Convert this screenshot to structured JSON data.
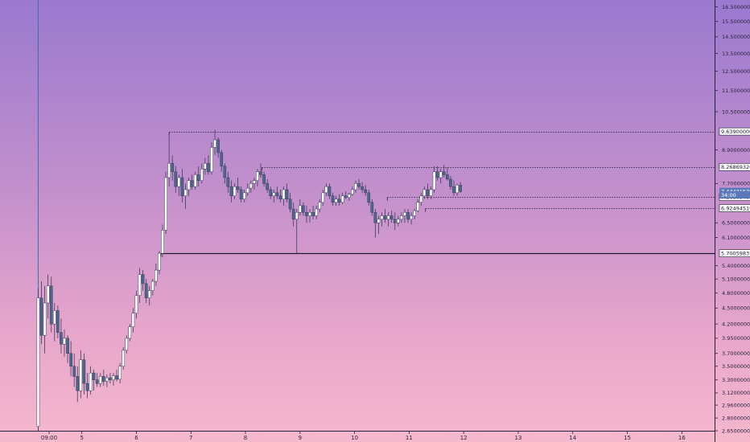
{
  "chart_data": {
    "type": "candlestick",
    "y_axis": {
      "position": "right",
      "scale": "log",
      "range": [
        2.65,
        17.0
      ],
      "ticks": [
        "16.50000000",
        "15.50000000",
        "14.50000000",
        "13.50000000",
        "12.50000000",
        "11.50000000",
        "10.50000000",
        "8.90000000",
        "7.70000000",
        "6.50000000",
        "6.10000000",
        "5.40000000",
        "5.10000000",
        "4.80000000",
        "4.50000000",
        "4.20000000",
        "3.95000000",
        "3.70000000",
        "3.50000000",
        "3.30000000",
        "3.12000000",
        "2.96000000",
        "2.80000000",
        "2.65000000"
      ]
    },
    "x_axis": {
      "ticks": [
        "09:00",
        "5",
        "6",
        "7",
        "8",
        "9",
        "10",
        "11",
        "12",
        "13",
        "14",
        "15",
        "16"
      ],
      "tick_units": [
        4.4,
        5,
        6,
        7,
        8,
        9,
        10,
        11,
        12,
        13,
        14,
        15,
        16
      ],
      "range": [
        3.5,
        16.6
      ]
    },
    "levels": [
      {
        "label": "9.63900000",
        "value": 9.639,
        "style": "dotted",
        "start": 6.6
      },
      {
        "label": "8.26869320",
        "value": 8.2687,
        "style": "dotted",
        "start": 8.3
      },
      {
        "label": "7.26809481",
        "value": 7.268,
        "style": "dotted",
        "start": 10.6
      },
      {
        "label": "6.92494519",
        "value": 6.925,
        "style": "dotted",
        "start": 11.3
      },
      {
        "label": "5.70059831",
        "value": 5.7006,
        "style": "solid",
        "start": 6.45
      }
    ],
    "price_tags": [
      {
        "label": "7.44421570",
        "value": 7.444,
        "color": "#5b79b8"
      },
      {
        "label": "34:00",
        "value": 7.33,
        "color": "#5b79b8"
      }
    ],
    "cursor_line": {
      "x": 4.2
    },
    "candles": [
      [
        4.2,
        2.7,
        4.9,
        2.65,
        4.7
      ],
      [
        4.26,
        4.7,
        5.05,
        3.85,
        4.0
      ],
      [
        4.32,
        4.0,
        4.95,
        3.7,
        4.6
      ],
      [
        4.38,
        4.6,
        5.2,
        4.3,
        4.95
      ],
      [
        4.44,
        4.95,
        5.15,
        4.05,
        4.2
      ],
      [
        4.5,
        4.2,
        4.6,
        3.9,
        4.45
      ],
      [
        4.56,
        4.45,
        4.55,
        3.95,
        4.05
      ],
      [
        4.62,
        4.05,
        4.3,
        3.7,
        3.85
      ],
      [
        4.68,
        3.85,
        4.1,
        3.65,
        3.95
      ],
      [
        4.74,
        3.95,
        4.0,
        3.55,
        3.7
      ],
      [
        4.8,
        3.7,
        3.9,
        3.35,
        3.5
      ],
      [
        4.86,
        3.5,
        3.7,
        3.2,
        3.35
      ],
      [
        4.92,
        3.35,
        3.5,
        3.0,
        3.15
      ],
      [
        4.98,
        3.15,
        3.75,
        3.05,
        3.6
      ],
      [
        5.04,
        3.6,
        3.7,
        3.1,
        3.25
      ],
      [
        5.1,
        3.25,
        3.4,
        3.05,
        3.15
      ],
      [
        5.16,
        3.15,
        3.5,
        3.1,
        3.4
      ],
      [
        5.22,
        3.4,
        3.45,
        3.15,
        3.3
      ],
      [
        5.28,
        3.3,
        3.4,
        3.2,
        3.25
      ],
      [
        5.34,
        3.25,
        3.4,
        3.2,
        3.35
      ],
      [
        5.4,
        3.35,
        3.45,
        3.22,
        3.28
      ],
      [
        5.46,
        3.28,
        3.38,
        3.2,
        3.33
      ],
      [
        5.52,
        3.33,
        3.4,
        3.25,
        3.3
      ],
      [
        5.58,
        3.3,
        3.4,
        3.22,
        3.36
      ],
      [
        5.64,
        3.36,
        3.45,
        3.28,
        3.31
      ],
      [
        5.7,
        3.31,
        3.55,
        3.25,
        3.5
      ],
      [
        5.76,
        3.5,
        3.8,
        3.45,
        3.75
      ],
      [
        5.82,
        3.75,
        4.0,
        3.7,
        3.95
      ],
      [
        5.88,
        3.95,
        4.2,
        3.9,
        4.15
      ],
      [
        5.94,
        4.15,
        4.5,
        4.05,
        4.4
      ],
      [
        6.0,
        4.4,
        4.85,
        4.3,
        4.75
      ],
      [
        6.06,
        4.75,
        5.35,
        4.6,
        5.2
      ],
      [
        6.12,
        5.2,
        5.3,
        4.85,
        5.0
      ],
      [
        6.18,
        5.0,
        5.1,
        4.6,
        4.7
      ],
      [
        6.24,
        4.7,
        4.95,
        4.55,
        4.85
      ],
      [
        6.3,
        4.85,
        5.1,
        4.75,
        5.05
      ],
      [
        6.36,
        5.05,
        5.45,
        4.95,
        5.3
      ],
      [
        6.42,
        5.3,
        5.75,
        5.2,
        5.7
      ],
      [
        6.48,
        5.7,
        6.45,
        5.6,
        6.3
      ],
      [
        6.54,
        6.3,
        8.1,
        6.2,
        7.9
      ],
      [
        6.6,
        7.9,
        9.5,
        7.6,
        8.4
      ],
      [
        6.66,
        8.4,
        8.7,
        7.8,
        8.1
      ],
      [
        6.72,
        8.1,
        8.3,
        7.4,
        7.6
      ],
      [
        6.78,
        7.6,
        8.0,
        7.3,
        7.9
      ],
      [
        6.84,
        7.9,
        8.2,
        7.1,
        7.3
      ],
      [
        6.9,
        7.3,
        7.7,
        6.9,
        7.5
      ],
      [
        6.96,
        7.5,
        7.9,
        7.3,
        7.8
      ],
      [
        7.02,
        7.8,
        8.0,
        7.5,
        7.6
      ],
      [
        7.08,
        7.6,
        8.1,
        7.5,
        8.0
      ],
      [
        7.14,
        8.0,
        8.3,
        7.6,
        7.8
      ],
      [
        7.2,
        7.8,
        8.4,
        7.7,
        8.2
      ],
      [
        7.26,
        8.2,
        8.6,
        8.0,
        8.4
      ],
      [
        7.32,
        8.4,
        8.7,
        8.0,
        8.1
      ],
      [
        7.38,
        8.1,
        9.2,
        8.0,
        9.0
      ],
      [
        7.44,
        9.0,
        9.7,
        8.7,
        9.3
      ],
      [
        7.5,
        9.3,
        9.4,
        8.6,
        8.8
      ],
      [
        7.56,
        8.8,
        8.9,
        8.1,
        8.3
      ],
      [
        7.62,
        8.3,
        8.4,
        7.7,
        7.9
      ],
      [
        7.68,
        7.9,
        8.1,
        7.4,
        7.6
      ],
      [
        7.74,
        7.6,
        7.8,
        7.1,
        7.3
      ],
      [
        7.8,
        7.3,
        7.7,
        7.2,
        7.6
      ],
      [
        7.86,
        7.6,
        7.9,
        7.4,
        7.5
      ],
      [
        7.92,
        7.5,
        7.6,
        7.1,
        7.2
      ],
      [
        7.98,
        7.2,
        7.5,
        7.1,
        7.4
      ],
      [
        8.04,
        7.4,
        7.7,
        7.3,
        7.55
      ],
      [
        8.1,
        7.55,
        7.8,
        7.4,
        7.7
      ],
      [
        8.16,
        7.7,
        7.9,
        7.5,
        7.8
      ],
      [
        8.22,
        7.8,
        8.2,
        7.6,
        8.1
      ],
      [
        8.28,
        8.1,
        8.4,
        7.9,
        8.0
      ],
      [
        8.34,
        8.0,
        8.1,
        7.6,
        7.7
      ],
      [
        8.4,
        7.7,
        7.85,
        7.4,
        7.5
      ],
      [
        8.46,
        7.5,
        7.6,
        7.2,
        7.3
      ],
      [
        8.52,
        7.3,
        7.5,
        7.1,
        7.4
      ],
      [
        8.58,
        7.4,
        7.6,
        7.2,
        7.3
      ],
      [
        8.64,
        7.3,
        7.5,
        7.1,
        7.2
      ],
      [
        8.7,
        7.2,
        7.6,
        7.0,
        7.5
      ],
      [
        8.76,
        7.5,
        7.7,
        7.1,
        7.2
      ],
      [
        8.82,
        7.2,
        7.4,
        6.8,
        6.9
      ],
      [
        8.88,
        6.9,
        7.1,
        6.4,
        6.6
      ],
      [
        8.94,
        6.6,
        6.9,
        5.7,
        6.8
      ],
      [
        9.0,
        6.8,
        7.2,
        6.7,
        7.0
      ],
      [
        9.06,
        7.0,
        7.1,
        6.7,
        6.8
      ],
      [
        9.12,
        6.8,
        7.0,
        6.5,
        6.7
      ],
      [
        9.18,
        6.7,
        6.9,
        6.5,
        6.8
      ],
      [
        9.24,
        6.8,
        7.0,
        6.6,
        6.7
      ],
      [
        9.3,
        6.7,
        7.0,
        6.6,
        6.9
      ],
      [
        9.36,
        6.9,
        7.2,
        6.8,
        7.1
      ],
      [
        9.42,
        7.1,
        7.5,
        7.0,
        7.4
      ],
      [
        9.48,
        7.4,
        7.7,
        7.3,
        7.6
      ],
      [
        9.54,
        7.6,
        7.7,
        7.2,
        7.3
      ],
      [
        9.6,
        7.3,
        7.4,
        7.0,
        7.1
      ],
      [
        9.66,
        7.1,
        7.3,
        7.0,
        7.2
      ],
      [
        9.72,
        7.2,
        7.35,
        7.0,
        7.1
      ],
      [
        9.78,
        7.1,
        7.4,
        7.05,
        7.3
      ],
      [
        9.84,
        7.3,
        7.45,
        7.2,
        7.25
      ],
      [
        9.9,
        7.25,
        7.4,
        7.15,
        7.35
      ],
      [
        9.96,
        7.35,
        7.6,
        7.3,
        7.5
      ],
      [
        10.02,
        7.5,
        7.8,
        7.4,
        7.7
      ],
      [
        10.08,
        7.7,
        7.85,
        7.5,
        7.6
      ],
      [
        10.14,
        7.6,
        7.75,
        7.4,
        7.5
      ],
      [
        10.2,
        7.5,
        7.65,
        7.3,
        7.4
      ],
      [
        10.26,
        7.4,
        7.5,
        7.0,
        7.1
      ],
      [
        10.32,
        7.1,
        7.2,
        6.7,
        6.8
      ],
      [
        10.38,
        6.8,
        6.9,
        6.1,
        6.5
      ],
      [
        10.44,
        6.5,
        6.7,
        6.2,
        6.6
      ],
      [
        10.5,
        6.6,
        6.8,
        6.4,
        6.7
      ],
      [
        10.56,
        6.7,
        6.9,
        6.5,
        6.6
      ],
      [
        10.62,
        6.6,
        6.8,
        6.4,
        6.7
      ],
      [
        10.68,
        6.7,
        6.85,
        6.5,
        6.6
      ],
      [
        10.74,
        6.6,
        6.8,
        6.3,
        6.5
      ],
      [
        10.8,
        6.5,
        6.7,
        6.4,
        6.6
      ],
      [
        10.86,
        6.6,
        6.8,
        6.5,
        6.7
      ],
      [
        10.92,
        6.7,
        6.9,
        6.5,
        6.8
      ],
      [
        10.98,
        6.8,
        6.9,
        6.5,
        6.6
      ],
      [
        11.04,
        6.6,
        6.8,
        6.45,
        6.7
      ],
      [
        11.1,
        6.7,
        6.9,
        6.6,
        6.85
      ],
      [
        11.16,
        6.85,
        7.2,
        6.8,
        7.1
      ],
      [
        11.22,
        7.1,
        7.4,
        7.0,
        7.3
      ],
      [
        11.28,
        7.3,
        7.6,
        7.2,
        7.5
      ],
      [
        11.34,
        7.5,
        7.7,
        7.2,
        7.3
      ],
      [
        11.4,
        7.3,
        7.6,
        7.2,
        7.5
      ],
      [
        11.46,
        7.5,
        8.3,
        7.4,
        8.1
      ],
      [
        11.52,
        8.1,
        8.3,
        7.8,
        7.9
      ],
      [
        11.58,
        7.9,
        8.2,
        7.7,
        8.1
      ],
      [
        11.64,
        8.1,
        8.35,
        7.9,
        8.0
      ],
      [
        11.7,
        8.0,
        8.25,
        7.8,
        7.85
      ],
      [
        11.76,
        7.85,
        7.95,
        7.5,
        7.6
      ],
      [
        11.82,
        7.6,
        7.8,
        7.3,
        7.4
      ],
      [
        11.88,
        7.4,
        7.7,
        7.3,
        7.65
      ],
      [
        11.94,
        7.65,
        7.75,
        7.4,
        7.44
      ]
    ]
  }
}
